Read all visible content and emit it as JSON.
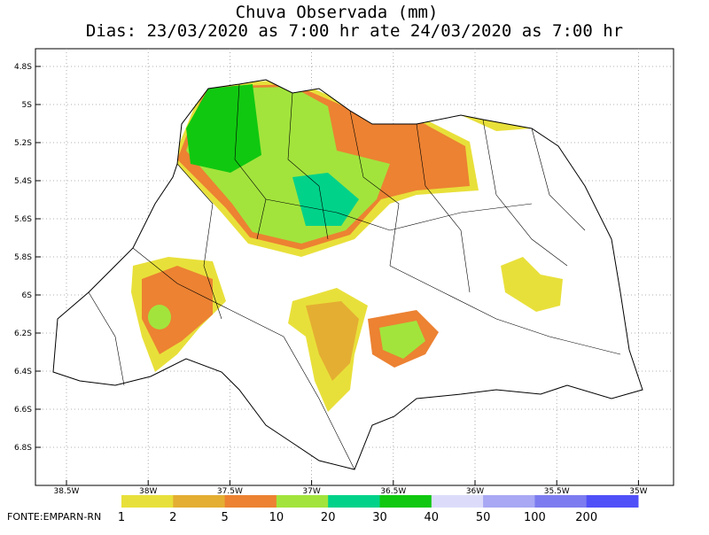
{
  "header": {
    "title": "Chuva Observada (mm)",
    "subtitle": "Dias: 23/03/2020 as 7:00 hr ate 24/03/2020 as 7:00 hr"
  },
  "map": {
    "lat_labels": [
      "4.8S",
      "5S",
      "5.2S",
      "5.4S",
      "5.6S",
      "5.8S",
      "6S",
      "6.2S",
      "6.4S",
      "6.6S",
      "6.8S"
    ],
    "lon_labels": [
      "38.5W",
      "38W",
      "37.5W",
      "37W",
      "36.5W",
      "36W",
      "35.5W",
      "35W"
    ]
  },
  "legend": {
    "labels": [
      "1",
      "2",
      "5",
      "10",
      "20",
      "30",
      "40",
      "50",
      "100",
      "200"
    ],
    "colors": [
      "#e8e03a",
      "#e4ae32",
      "#ec8232",
      "#a2e43c",
      "#00d28a",
      "#10c810",
      "#dcdcfa",
      "#a8a8f4",
      "#7c7cf0",
      "#5050f8"
    ]
  },
  "footer": {
    "source": "FONTE:EMPARN-RN"
  }
}
